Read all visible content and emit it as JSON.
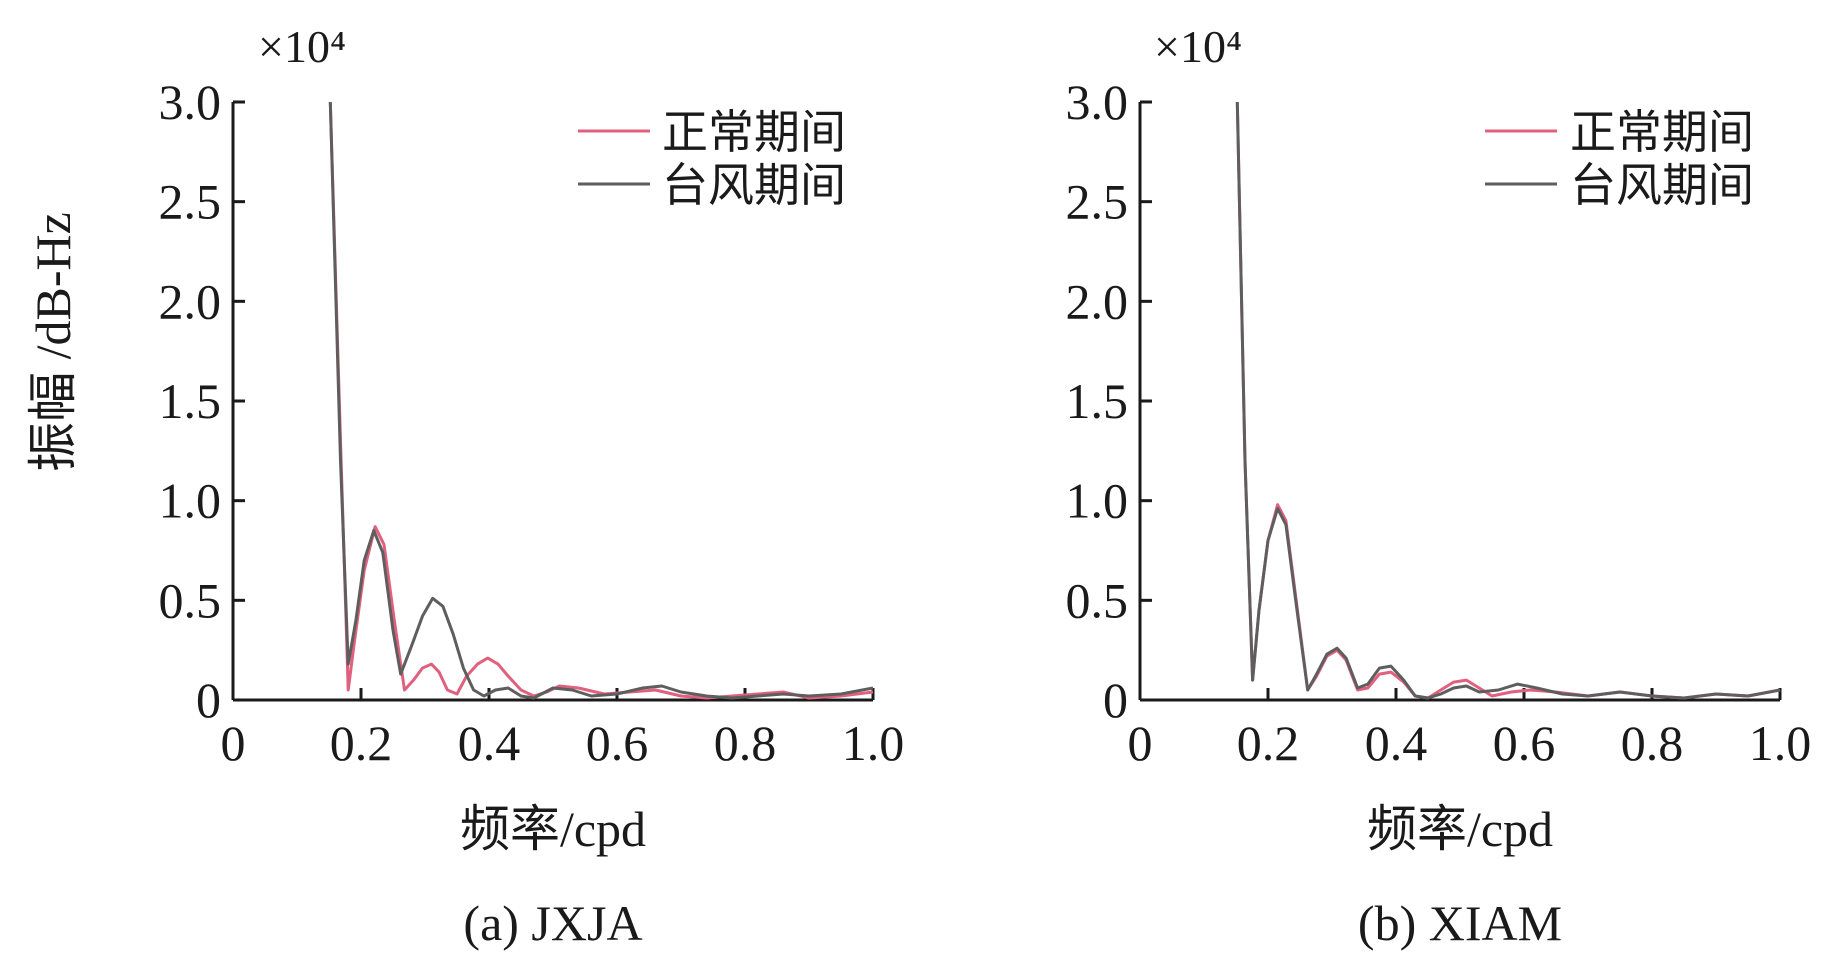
{
  "figure": {
    "ylabel": "振幅 /dB-Hz",
    "xlabel": "频率/cpd"
  },
  "chart_data": [
    {
      "type": "line",
      "caption": "(a) JXJA",
      "xlabel": "频率/cpd",
      "ylabel": "振幅 /dB-Hz",
      "y_multiplier": "×10⁴",
      "xlim": [
        0,
        1.0
      ],
      "ylim": [
        0,
        3.0
      ],
      "xticks": [
        "0",
        "0.2",
        "0.4",
        "0.6",
        "0.8",
        "1.0"
      ],
      "yticks": [
        "0",
        "0.5",
        "1.0",
        "1.5",
        "2.0",
        "2.5",
        "3.0"
      ],
      "grid": false,
      "legend_position": "top-right",
      "series": [
        {
          "name": "正常期间",
          "color": "#e0607e",
          "x": [
            0.152,
            0.168,
            0.18,
            0.19,
            0.205,
            0.222,
            0.236,
            0.252,
            0.268,
            0.282,
            0.296,
            0.31,
            0.322,
            0.335,
            0.35,
            0.365,
            0.382,
            0.398,
            0.414,
            0.43,
            0.45,
            0.47,
            0.49,
            0.51,
            0.54,
            0.58,
            0.62,
            0.66,
            0.7,
            0.74,
            0.78,
            0.82,
            0.86,
            0.9,
            0.95,
            1.0
          ],
          "y": [
            3.0,
            1.3,
            0.05,
            0.3,
            0.65,
            0.87,
            0.78,
            0.4,
            0.05,
            0.1,
            0.16,
            0.18,
            0.14,
            0.05,
            0.03,
            0.12,
            0.18,
            0.21,
            0.18,
            0.12,
            0.05,
            0.02,
            0.04,
            0.07,
            0.06,
            0.03,
            0.04,
            0.05,
            0.02,
            0.01,
            0.02,
            0.03,
            0.04,
            0.01,
            0.02,
            0.04
          ]
        },
        {
          "name": "台风期间",
          "color": "#5e5e5e",
          "x": [
            0.152,
            0.168,
            0.18,
            0.192,
            0.205,
            0.22,
            0.234,
            0.25,
            0.262,
            0.28,
            0.296,
            0.312,
            0.328,
            0.344,
            0.36,
            0.376,
            0.392,
            0.41,
            0.43,
            0.45,
            0.47,
            0.5,
            0.53,
            0.56,
            0.6,
            0.64,
            0.67,
            0.7,
            0.74,
            0.78,
            0.82,
            0.86,
            0.9,
            0.95,
            1.0
          ],
          "y": [
            3.0,
            1.2,
            0.18,
            0.4,
            0.7,
            0.85,
            0.74,
            0.35,
            0.13,
            0.28,
            0.42,
            0.51,
            0.47,
            0.33,
            0.16,
            0.05,
            0.02,
            0.05,
            0.06,
            0.02,
            0.01,
            0.06,
            0.05,
            0.02,
            0.03,
            0.06,
            0.07,
            0.04,
            0.02,
            0.01,
            0.02,
            0.03,
            0.02,
            0.03,
            0.06
          ]
        }
      ]
    },
    {
      "type": "line",
      "caption": "(b) XIAM",
      "xlabel": "频率/cpd",
      "ylabel": "",
      "y_multiplier": "×10⁴",
      "xlim": [
        0,
        1.0
      ],
      "ylim": [
        0,
        3.0
      ],
      "xticks": [
        "0",
        "0.2",
        "0.4",
        "0.6",
        "0.8",
        "1.0"
      ],
      "yticks": [
        "0",
        "0.5",
        "1.0",
        "1.5",
        "2.0",
        "2.5",
        "3.0"
      ],
      "grid": false,
      "legend_position": "top-right",
      "series": [
        {
          "name": "正常期间",
          "color": "#e0607e",
          "x": [
            0.152,
            0.164,
            0.176,
            0.186,
            0.2,
            0.215,
            0.228,
            0.244,
            0.262,
            0.276,
            0.292,
            0.308,
            0.322,
            0.34,
            0.356,
            0.374,
            0.392,
            0.412,
            0.43,
            0.45,
            0.47,
            0.49,
            0.51,
            0.53,
            0.55,
            0.58,
            0.61,
            0.65,
            0.7,
            0.75,
            0.8,
            0.85,
            0.9,
            0.95,
            1.0
          ],
          "y": [
            3.0,
            1.2,
            0.1,
            0.45,
            0.8,
            0.98,
            0.9,
            0.5,
            0.05,
            0.12,
            0.22,
            0.25,
            0.2,
            0.05,
            0.06,
            0.13,
            0.14,
            0.09,
            0.02,
            0.01,
            0.05,
            0.09,
            0.1,
            0.06,
            0.02,
            0.04,
            0.05,
            0.04,
            0.02,
            0.04,
            0.02,
            0.01,
            0.03,
            0.02,
            0.05
          ]
        },
        {
          "name": "台风期间",
          "color": "#5e5e5e",
          "x": [
            0.152,
            0.164,
            0.176,
            0.186,
            0.2,
            0.215,
            0.228,
            0.244,
            0.262,
            0.276,
            0.292,
            0.308,
            0.322,
            0.34,
            0.356,
            0.374,
            0.392,
            0.412,
            0.43,
            0.45,
            0.47,
            0.49,
            0.51,
            0.53,
            0.56,
            0.59,
            0.62,
            0.66,
            0.7,
            0.75,
            0.8,
            0.85,
            0.9,
            0.95,
            1.0
          ],
          "y": [
            3.0,
            1.2,
            0.1,
            0.45,
            0.8,
            0.96,
            0.88,
            0.48,
            0.05,
            0.13,
            0.23,
            0.26,
            0.21,
            0.06,
            0.08,
            0.16,
            0.17,
            0.1,
            0.02,
            0.01,
            0.03,
            0.06,
            0.07,
            0.04,
            0.05,
            0.08,
            0.06,
            0.03,
            0.02,
            0.04,
            0.02,
            0.01,
            0.03,
            0.02,
            0.05
          ]
        }
      ]
    }
  ]
}
